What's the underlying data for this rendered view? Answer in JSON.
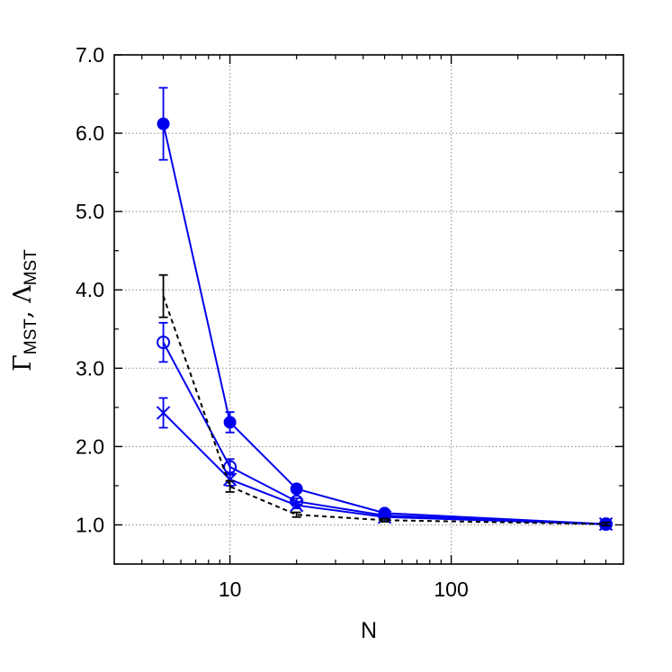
{
  "chart_data": {
    "type": "line",
    "xlabel": "N",
    "ylabel": {
      "symbol1": "Γ",
      "sub1": "MST",
      "separator": ", ",
      "symbol2": "Λ",
      "sub2": "MST"
    },
    "xscale": "log",
    "xlim": [
      3,
      600
    ],
    "ylim": [
      0.5,
      7.0
    ],
    "xticks": [
      {
        "value": 10,
        "label": "10"
      },
      {
        "value": 100,
        "label": "100"
      }
    ],
    "yticks": [
      {
        "value": 1.0,
        "label": "1.0"
      },
      {
        "value": 2.0,
        "label": "2.0"
      },
      {
        "value": 3.0,
        "label": "3.0"
      },
      {
        "value": 4.0,
        "label": "4.0"
      },
      {
        "value": 5.0,
        "label": "5.0"
      },
      {
        "value": 6.0,
        "label": "6.0"
      },
      {
        "value": 7.0,
        "label": "7.0"
      }
    ],
    "grid": true,
    "series": [
      {
        "marker": "filled-circle",
        "color": "#0000ee",
        "line": "solid",
        "x": [
          5,
          10,
          20,
          50,
          500
        ],
        "y": [
          6.12,
          2.31,
          1.46,
          1.15,
          1.01
        ],
        "err": [
          0.46,
          0.13,
          0.05,
          0.03,
          0.02
        ]
      },
      {
        "marker": "open-circle",
        "color": "#0000ee",
        "line": "solid",
        "x": [
          5,
          10,
          20,
          50,
          500
        ],
        "y": [
          3.33,
          1.74,
          1.3,
          1.12,
          1.01
        ],
        "err": [
          0.25,
          0.1,
          0.04,
          0.03,
          0.02
        ]
      },
      {
        "marker": "cross",
        "color": "#0000ee",
        "line": "solid",
        "x": [
          5,
          10,
          20,
          50,
          500
        ],
        "y": [
          2.43,
          1.58,
          1.25,
          1.1,
          1.01
        ],
        "err": [
          0.19,
          0.08,
          0.04,
          0.02,
          0.02
        ]
      },
      {
        "marker": "none",
        "color": "#000000",
        "line": "dashed",
        "x": [
          5,
          10,
          20,
          50,
          500
        ],
        "y": [
          3.92,
          1.49,
          1.13,
          1.06,
          1.01
        ],
        "err": [
          0.27,
          0.07,
          0.03,
          0.02,
          0.02
        ]
      }
    ]
  }
}
